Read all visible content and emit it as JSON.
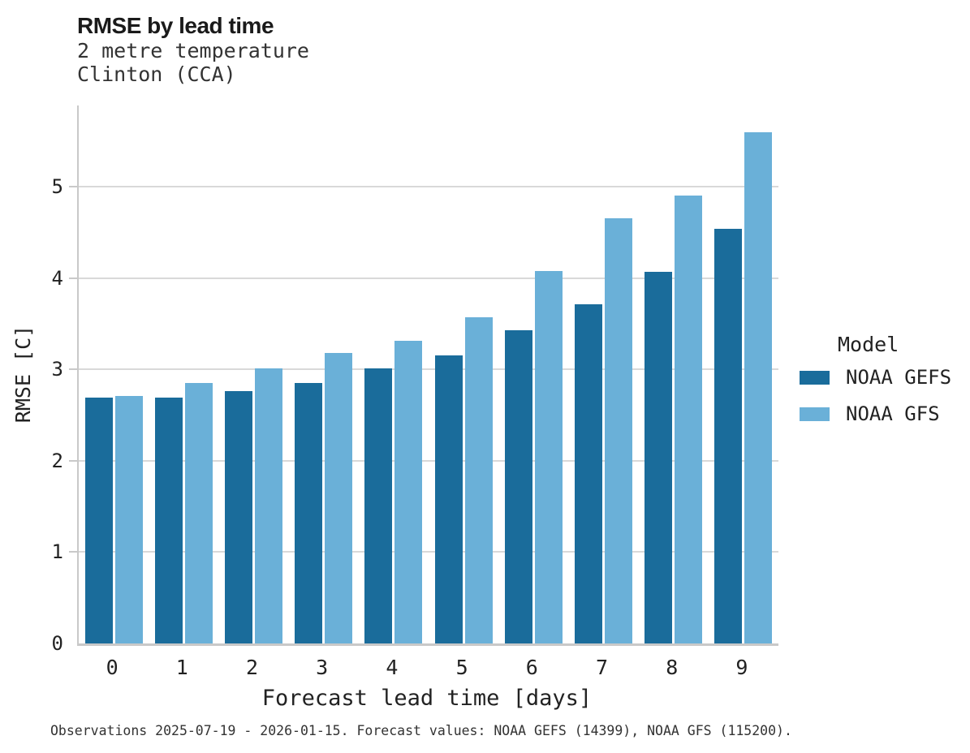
{
  "header": {
    "title": "RMSE by lead time",
    "subtitle_line1": "2 metre temperature",
    "subtitle_line2": "Clinton (CCA)"
  },
  "chart_data": {
    "type": "bar",
    "title": "RMSE by lead time",
    "subtitle": [
      "2 metre temperature",
      "Clinton (CCA)"
    ],
    "categories": [
      "0",
      "1",
      "2",
      "3",
      "4",
      "5",
      "6",
      "7",
      "8",
      "9"
    ],
    "series": [
      {
        "name": "NOAA GEFS",
        "color": "#1a6c9b",
        "values": [
          2.69,
          2.69,
          2.76,
          2.85,
          3.01,
          3.15,
          3.43,
          3.71,
          4.07,
          4.54
        ]
      },
      {
        "name": "NOAA GFS",
        "color": "#6ab0d8",
        "values": [
          2.71,
          2.85,
          3.01,
          3.18,
          3.31,
          3.57,
          4.08,
          4.66,
          4.9,
          5.6
        ]
      }
    ],
    "xlabel": "Forecast lead time [days]",
    "ylabel": "RMSE [C]",
    "ylim": [
      0,
      5.89
    ],
    "yticks": [
      0,
      1,
      2,
      3,
      4,
      5
    ],
    "grid": "horizontal",
    "legend_title": "Model",
    "legend_position": "right"
  },
  "legend": {
    "title": "Model",
    "entries": [
      {
        "label": "NOAA GEFS",
        "color": "#1a6c9b"
      },
      {
        "label": "NOAA GFS",
        "color": "#6ab0d8"
      }
    ]
  },
  "caption": "Observations 2025-07-19 - 2026-01-15. Forecast values: NOAA GEFS (14399), NOAA GFS (115200)."
}
